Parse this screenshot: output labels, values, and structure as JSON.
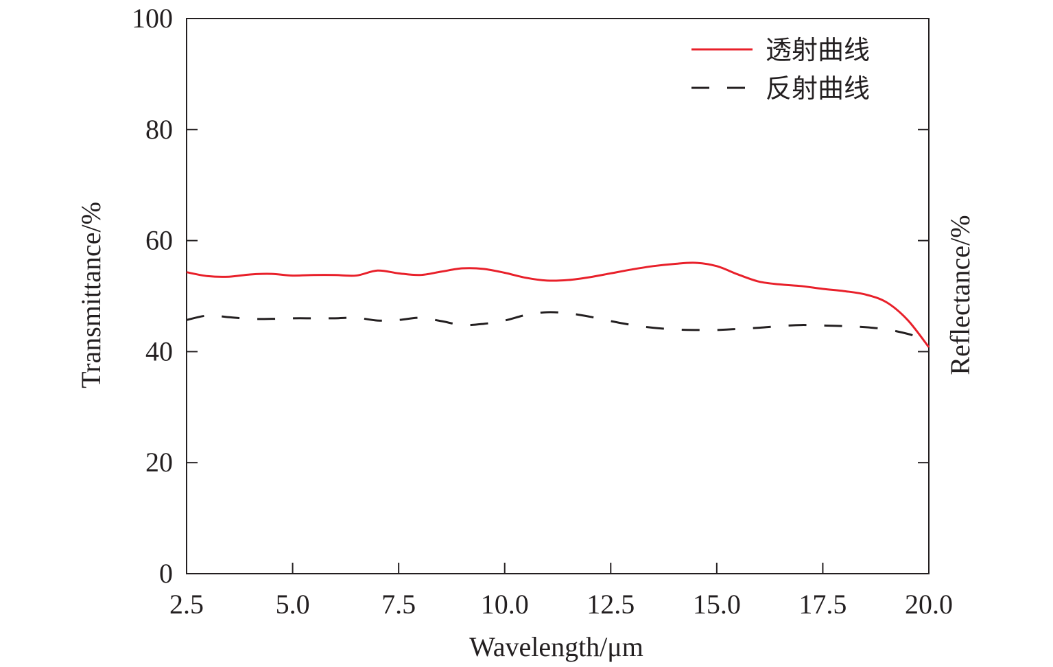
{
  "chart_data": {
    "type": "line",
    "title": "",
    "xlabel": "Wavelength/μm",
    "ylabel": "Transmittance/%",
    "ylabel_right": "Reflectance/%",
    "xlim": [
      2.5,
      20.0
    ],
    "ylim": [
      0,
      100
    ],
    "x_ticks": [
      2.5,
      5.0,
      7.5,
      10.0,
      12.5,
      15.0,
      17.5,
      20.0
    ],
    "x_tick_labels": [
      "2.5",
      "5.0",
      "7.5",
      "10.0",
      "12.5",
      "15.0",
      "17.5",
      "20.0"
    ],
    "y_ticks": [
      0,
      20,
      40,
      60,
      80,
      100
    ],
    "y_tick_labels": [
      "0",
      "20",
      "40",
      "60",
      "80",
      "100"
    ],
    "grid": false,
    "legend_position": "top-right",
    "series": [
      {
        "name": "透射曲线",
        "color": "#e8202a",
        "dash": "solid",
        "x": [
          2.5,
          3.0,
          3.5,
          4.0,
          4.5,
          5.0,
          5.5,
          6.0,
          6.5,
          7.0,
          7.5,
          8.0,
          8.5,
          9.0,
          9.5,
          10.0,
          10.5,
          11.0,
          11.5,
          12.0,
          12.5,
          13.0,
          13.5,
          14.0,
          14.5,
          15.0,
          15.5,
          16.0,
          16.5,
          17.0,
          17.5,
          18.0,
          18.5,
          19.0,
          19.5,
          20.0
        ],
        "y": [
          54.3,
          53.6,
          53.5,
          53.9,
          54.0,
          53.7,
          53.8,
          53.8,
          53.7,
          54.6,
          54.1,
          53.8,
          54.4,
          55.0,
          54.9,
          54.2,
          53.3,
          52.8,
          52.9,
          53.4,
          54.1,
          54.8,
          55.4,
          55.8,
          56.0,
          55.4,
          53.9,
          52.6,
          52.1,
          51.8,
          51.3,
          50.9,
          50.3,
          48.9,
          45.7,
          40.8
        ]
      },
      {
        "name": "反射曲线",
        "color": "#231f20",
        "dash": "dashed",
        "x": [
          2.5,
          3.0,
          3.5,
          4.0,
          4.5,
          5.0,
          5.5,
          6.0,
          6.5,
          7.0,
          7.5,
          8.0,
          8.5,
          9.0,
          9.5,
          10.0,
          10.5,
          11.0,
          11.5,
          12.0,
          12.5,
          13.0,
          13.5,
          14.0,
          14.5,
          15.0,
          15.5,
          16.0,
          16.5,
          17.0,
          17.5,
          18.0,
          18.5,
          19.0,
          19.5,
          20.0
        ],
        "y": [
          45.7,
          46.5,
          46.2,
          45.9,
          45.9,
          46.0,
          46.0,
          46.0,
          46.1,
          45.6,
          45.7,
          46.1,
          45.5,
          44.8,
          45.0,
          45.6,
          46.6,
          47.1,
          46.9,
          46.3,
          45.5,
          44.8,
          44.3,
          44.0,
          43.9,
          43.9,
          44.1,
          44.3,
          44.6,
          44.8,
          44.7,
          44.6,
          44.4,
          44.0,
          43.2,
          42.0
        ]
      }
    ]
  }
}
